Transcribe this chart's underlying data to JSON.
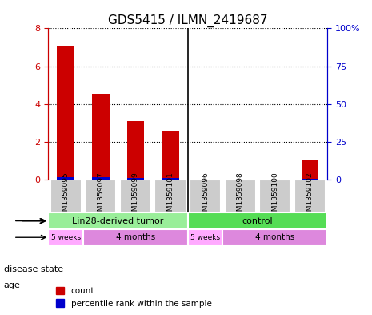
{
  "title": "GDS5415 / ILMN_2419687",
  "samples": [
    "GSM1359095",
    "GSM1359097",
    "GSM1359099",
    "GSM1359101",
    "GSM1359096",
    "GSM1359098",
    "GSM1359100",
    "GSM1359102"
  ],
  "count_values": [
    7.1,
    4.55,
    3.1,
    2.6,
    0.0,
    0.0,
    0.0,
    1.0
  ],
  "percentile_values": [
    1.5,
    1.4,
    1.0,
    0.85,
    0.0,
    0.0,
    0.0,
    0.35
  ],
  "ylim_left": [
    0,
    8
  ],
  "ylim_right": [
    0,
    100
  ],
  "yticks_left": [
    0,
    2,
    4,
    6,
    8
  ],
  "yticks_right": [
    0,
    25,
    50,
    75,
    100
  ],
  "ytick_labels_right": [
    "0",
    "25",
    "50",
    "75",
    "100%"
  ],
  "bar_color_count": "#cc0000",
  "bar_color_percentile": "#0000cc",
  "bar_width": 0.5,
  "separator_after": 4,
  "disease_state_groups": [
    {
      "label": "Lin28-derived tumor",
      "start": 0,
      "end": 4,
      "color": "#99ee99"
    },
    {
      "label": "control",
      "start": 4,
      "end": 8,
      "color": "#55dd55"
    }
  ],
  "age_groups": [
    {
      "label": "5 weeks",
      "start": 0,
      "end": 1,
      "color": "#ffaaff"
    },
    {
      "label": "4 months",
      "start": 1,
      "end": 4,
      "color": "#dd88dd"
    },
    {
      "label": "5 weeks",
      "start": 4,
      "end": 5,
      "color": "#ffaaff"
    },
    {
      "label": "4 months",
      "start": 5,
      "end": 8,
      "color": "#dd88dd"
    }
  ],
  "tick_label_color": "#cc0000",
  "right_tick_color": "#0000cc",
  "bg_sample_color": "#cccccc",
  "legend_count_label": "count",
  "legend_percentile_label": "percentile rank within the sample",
  "disease_state_label": "disease state",
  "age_label": "age"
}
